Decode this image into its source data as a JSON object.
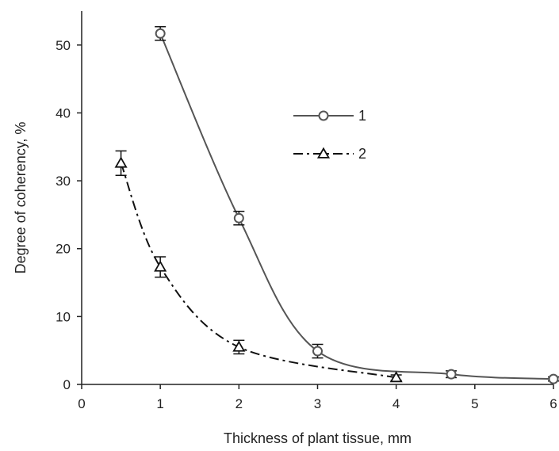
{
  "chart_data": {
    "type": "line",
    "xlabel": "Thickness of plant tissue, mm",
    "ylabel": "Degree of coherency, %",
    "xlim": [
      0,
      6
    ],
    "ylim": [
      0,
      55
    ],
    "x_ticks": [
      0,
      1,
      2,
      3,
      4,
      5,
      6
    ],
    "y_ticks": [
      0,
      10,
      20,
      30,
      40,
      50
    ],
    "grid": false,
    "legend_position": "top-right",
    "series": [
      {
        "name": "1",
        "marker": "circle",
        "line_style": "solid",
        "color": "#555555",
        "points": [
          {
            "x": 1.0,
            "y": 51.7,
            "err": 1.0
          },
          {
            "x": 2.0,
            "y": 24.5,
            "err": 1.0
          },
          {
            "x": 3.0,
            "y": 4.9,
            "err": 1.0
          },
          {
            "x": 4.7,
            "y": 1.5,
            "err": 0.5
          },
          {
            "x": 6.0,
            "y": 0.8,
            "err": 0.3
          }
        ]
      },
      {
        "name": "2",
        "marker": "triangle",
        "line_style": "dash-dot",
        "color": "#111111",
        "points": [
          {
            "x": 0.5,
            "y": 32.6,
            "err": 1.8
          },
          {
            "x": 1.0,
            "y": 17.3,
            "err": 1.5
          },
          {
            "x": 2.0,
            "y": 5.5,
            "err": 1.0
          },
          {
            "x": 4.0,
            "y": 1.0,
            "err": 0.4
          }
        ]
      }
    ]
  }
}
